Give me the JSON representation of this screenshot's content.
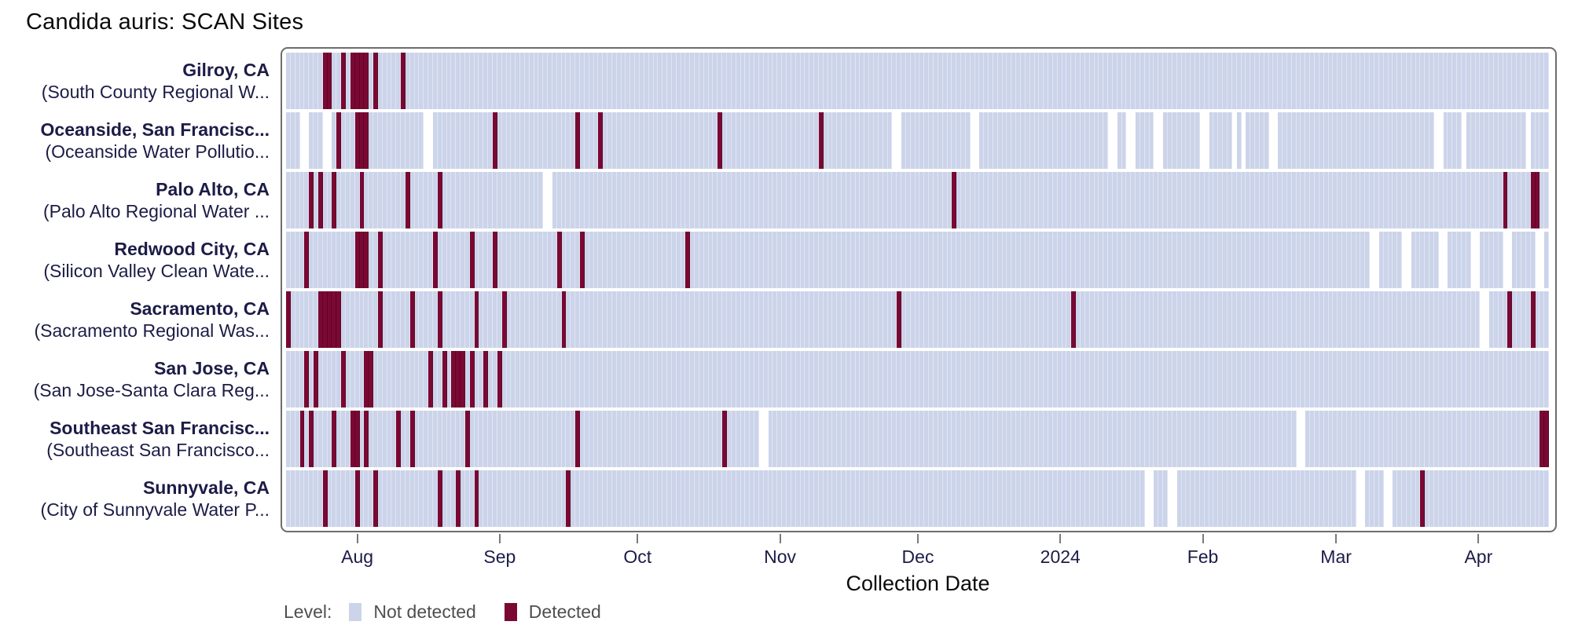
{
  "title": "Candida auris: SCAN Sites",
  "axis": {
    "label": "Collection Date"
  },
  "legend": {
    "label": "Level:",
    "items": [
      {
        "label": "Not detected",
        "key": "not_detected"
      },
      {
        "label": "Detected",
        "key": "detected"
      }
    ]
  },
  "colors": {
    "not_detected": "#ccd4ea",
    "detected": "#7a0833",
    "cell_separator": "#e0e5f3",
    "plot_border": "#6d6d6d",
    "row_label_text": "#1c1c47",
    "tick_label_text": "#1c1c47",
    "legend_text": "#4f4f4f"
  },
  "chart_data": {
    "type": "heatmap",
    "title": "Candida auris: SCAN Sites",
    "xlabel": "Collection Date",
    "legend_title": "Level:",
    "levels": [
      "Not detected",
      "Detected"
    ],
    "x_start_date": "2023-07-17",
    "x_end_date": "2024-04-17",
    "total_days": 275,
    "x_ticks": [
      {
        "label": "Aug",
        "day": 15
      },
      {
        "label": "Sep",
        "day": 46
      },
      {
        "label": "Oct",
        "day": 76
      },
      {
        "label": "Nov",
        "day": 107
      },
      {
        "label": "Dec",
        "day": 137
      },
      {
        "label": "2024",
        "day": 168
      },
      {
        "label": "Feb",
        "day": 199
      },
      {
        "label": "Mar",
        "day": 228
      },
      {
        "label": "Apr",
        "day": 259
      }
    ],
    "sites": [
      {
        "city": "Gilroy, CA",
        "facility": "(South County Regional W...",
        "detected_days": [
          8,
          9,
          12,
          14,
          15,
          16,
          17,
          19,
          25
        ],
        "missing_days": []
      },
      {
        "city": "Oceanside, San Francisc...",
        "facility": "(Oceanside Water Pollutio...",
        "detected_days": [
          11,
          15,
          16,
          17,
          45,
          63,
          68,
          94,
          116
        ],
        "missing_days": [
          3,
          4,
          8,
          9,
          30,
          31,
          132,
          133,
          149,
          150,
          179,
          180,
          183,
          184,
          189,
          190,
          199,
          200,
          206,
          208,
          214,
          215,
          250,
          251,
          256,
          270
        ]
      },
      {
        "city": "Palo Alto, CA",
        "facility": "(Palo Alto Regional Water ...",
        "detected_days": [
          5,
          7,
          10,
          16,
          26,
          33,
          145,
          265,
          271,
          272
        ],
        "missing_days": [
          56,
          57
        ]
      },
      {
        "city": "Redwood City, CA",
        "facility": "(Silicon Valley Clean Wate...",
        "detected_days": [
          4,
          15,
          16,
          17,
          20,
          32,
          40,
          45,
          59,
          64,
          87
        ],
        "missing_days": [
          236,
          237,
          243,
          244,
          251,
          252,
          258,
          259,
          265,
          266,
          272,
          273
        ]
      },
      {
        "city": "Sacramento, CA",
        "facility": "(Sacramento Regional Was...",
        "detected_days": [
          0,
          7,
          8,
          9,
          10,
          11,
          20,
          27,
          33,
          41,
          47,
          60,
          133,
          171,
          266,
          271
        ],
        "missing_days": [
          260,
          261
        ]
      },
      {
        "city": "San Jose, CA",
        "facility": "(San Jose-Santa Clara Reg...",
        "detected_days": [
          4,
          6,
          12,
          17,
          18,
          31,
          34,
          36,
          37,
          38,
          40,
          43,
          46
        ],
        "missing_days": []
      },
      {
        "city": "Southeast San Francisc...",
        "facility": "(Southeast San Francisco...",
        "detected_days": [
          3,
          5,
          10,
          14,
          15,
          17,
          24,
          27,
          39,
          63,
          95,
          273,
          274
        ],
        "missing_days": [
          103,
          104,
          220,
          221
        ]
      },
      {
        "city": "Sunnyvale, CA",
        "facility": "(City of Sunnyvale Water P...",
        "detected_days": [
          8,
          15,
          19,
          33,
          37,
          41,
          61,
          247
        ],
        "missing_days": [
          187,
          188,
          192,
          193,
          233,
          234,
          239,
          240
        ]
      }
    ]
  }
}
